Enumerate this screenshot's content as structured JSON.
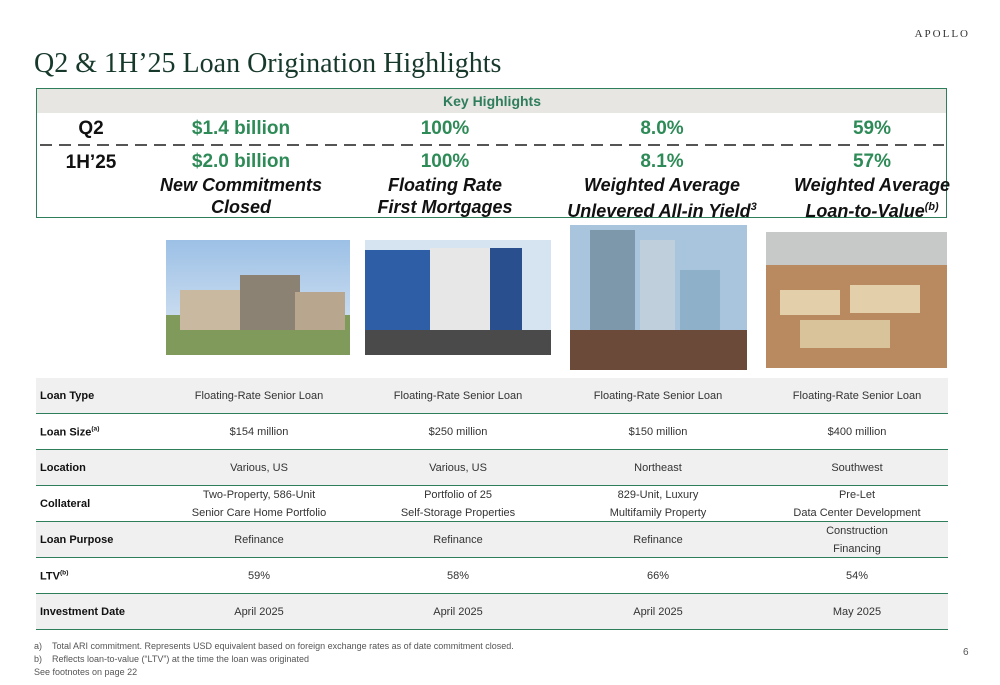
{
  "brand": "APOLLO",
  "title": "Q2 & 1H’25 Loan Origination Highlights",
  "highlights": {
    "heading": "Key Highlights",
    "row_labels": [
      "Q2",
      "1H’25"
    ],
    "columns": [
      {
        "q2": "$1.4 billion",
        "h1": "$2.0 billion",
        "caption": [
          "New Commitments",
          "Closed"
        ]
      },
      {
        "q2": "100%",
        "h1": "100%",
        "caption": [
          "Floating Rate",
          "First Mortgages"
        ]
      },
      {
        "q2": "8.0%",
        "h1": "8.1%",
        "caption": [
          "Weighted Average",
          "Unlevered All-in Yield"
        ],
        "caption_sup": "3"
      },
      {
        "q2": "59%",
        "h1": "57%",
        "caption": [
          "Weighted Average",
          "Loan-to-Value"
        ],
        "caption_sup": "(b)"
      }
    ]
  },
  "table": {
    "rows": [
      {
        "label": "Loan Type",
        "cells": [
          [
            "Floating-Rate Senior Loan"
          ],
          [
            "Floating-Rate Senior Loan"
          ],
          [
            "Floating-Rate Senior Loan"
          ],
          [
            "Floating-Rate Senior Loan"
          ]
        ]
      },
      {
        "label": "Loan Size",
        "label_sup": "(a)",
        "cells": [
          [
            "$154 million"
          ],
          [
            "$250 million"
          ],
          [
            "$150 million"
          ],
          [
            "$400 million"
          ]
        ]
      },
      {
        "label": "Location",
        "cells": [
          [
            "Various, US"
          ],
          [
            "Various, US"
          ],
          [
            "Northeast"
          ],
          [
            "Southwest"
          ]
        ]
      },
      {
        "label": "Collateral",
        "cells": [
          [
            "Two-Property, 586-Unit",
            "Senior Care Home Portfolio"
          ],
          [
            "Portfolio of 25",
            "Self-Storage Properties"
          ],
          [
            "829-Unit, Luxury",
            "Multifamily Property"
          ],
          [
            "Pre-Let",
            "Data Center Development"
          ]
        ]
      },
      {
        "label": "Loan Purpose",
        "cells": [
          [
            "Refinance"
          ],
          [
            "Refinance"
          ],
          [
            "Refinance"
          ],
          [
            "Construction",
            "Financing"
          ]
        ]
      },
      {
        "label": "LTV",
        "label_sup": "(b)",
        "cells": [
          [
            "59%"
          ],
          [
            "58%"
          ],
          [
            "66%"
          ],
          [
            "54%"
          ]
        ]
      },
      {
        "label": "Investment Date",
        "cells": [
          [
            "April 2025"
          ],
          [
            "April 2025"
          ],
          [
            "April 2025"
          ],
          [
            "May 2025"
          ]
        ]
      }
    ]
  },
  "footnotes": [
    {
      "marker": "a)",
      "text": "Total ARI commitment. Represents USD equivalent based on foreign exchange rates as of date commitment closed."
    },
    {
      "marker": "b)",
      "text": "Reflects loan-to-value (“LTV”) at the time the loan was originated"
    },
    {
      "marker": null,
      "text": "See footnotes on page 22"
    }
  ],
  "page_number": "6"
}
